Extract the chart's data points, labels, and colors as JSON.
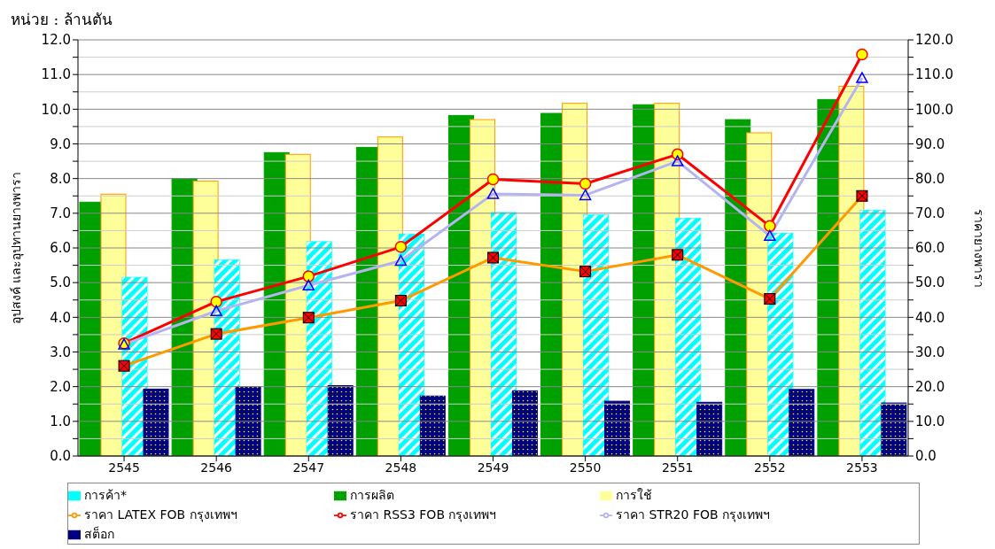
{
  "chart_data": {
    "type": "bar",
    "title": "หน่วย : ล้านตัน",
    "ylabel": "อุปสงค์ และอุปทานยางพารา",
    "y2label": "ราคายางพารา",
    "categories": [
      "2545",
      "2546",
      "2547",
      "2548",
      "2549",
      "2550",
      "2551",
      "2552",
      "2553"
    ],
    "series": [
      {
        "name": "การผลิต",
        "color": "#00a000",
        "values": [
          7.32,
          8.0,
          8.75,
          8.9,
          9.82,
          9.88,
          10.13,
          9.7,
          10.28
        ]
      },
      {
        "name": "การใช้",
        "color": "#ffff99",
        "values": [
          7.55,
          7.93,
          8.7,
          9.2,
          9.7,
          10.17,
          10.17,
          9.32,
          10.66
        ]
      },
      {
        "name": "การค้า*",
        "color": "#00ffff",
        "values": [
          5.15,
          5.65,
          6.18,
          6.4,
          7.02,
          6.95,
          6.85,
          6.42,
          7.08
        ]
      },
      {
        "name": "สต็อก",
        "color": "#000080",
        "values": [
          1.93,
          2.0,
          2.03,
          1.73,
          1.88,
          1.58,
          1.55,
          1.92,
          1.53
        ]
      },
      {
        "name": "ราคา RSS3 FOB กรุงเทพฯ",
        "type": "line",
        "axis": "y2",
        "marker": "circle",
        "color": "#ff0000",
        "values": [
          32.5,
          44.5,
          51.8,
          60.3,
          79.8,
          78.5,
          87.0,
          66.3,
          115.8
        ]
      },
      {
        "name": "ราคา STR20 FOB กรุงเทพฯ",
        "type": "line",
        "axis": "y2",
        "marker": "triangle",
        "color": "#b4b4f0",
        "values": [
          32.2,
          41.8,
          49.2,
          56.3,
          75.6,
          75.2,
          85.0,
          63.5,
          109.0
        ]
      },
      {
        "name": "ราคา LATEX FOB กรุงเทพฯ",
        "type": "line",
        "axis": "y2",
        "marker": "square",
        "color": "#ff9900",
        "values": [
          26.0,
          35.2,
          39.9,
          44.8,
          57.2,
          53.2,
          58.0,
          45.3,
          75.0
        ]
      }
    ],
    "ylim": [
      0,
      12
    ],
    "yticks": [
      {
        "value": 0,
        "label": "0.0"
      },
      {
        "value": 0.5,
        "label": null
      },
      {
        "value": 1,
        "label": "1.0"
      },
      {
        "value": 1.5,
        "label": null
      },
      {
        "value": 2,
        "label": "2.0"
      },
      {
        "value": 2.5,
        "label": null
      },
      {
        "value": 3,
        "label": "3.0"
      },
      {
        "value": 3.5,
        "label": null
      },
      {
        "value": 4,
        "label": "4.0"
      },
      {
        "value": 4.5,
        "label": null
      },
      {
        "value": 5,
        "label": "5.0"
      },
      {
        "value": 5.5,
        "label": null
      },
      {
        "value": 6,
        "label": "6.0"
      },
      {
        "value": 6.5,
        "label": null
      },
      {
        "value": 7,
        "label": "7.0"
      },
      {
        "value": 7.5,
        "label": null
      },
      {
        "value": 8,
        "label": "8.0"
      },
      {
        "value": 8.5,
        "label": null
      },
      {
        "value": 9,
        "label": "9.0"
      },
      {
        "value": 9.5,
        "label": null
      },
      {
        "value": 10,
        "label": "10.0"
      },
      {
        "value": 10.5,
        "label": null
      },
      {
        "value": 11,
        "label": "11.0"
      },
      {
        "value": 11.5,
        "label": null
      },
      {
        "value": 12,
        "label": "12.0"
      }
    ],
    "y2lim": [
      0,
      120
    ],
    "y2ticks": [
      {
        "value": 0,
        "label": "0.0"
      },
      {
        "value": 5,
        "label": null
      },
      {
        "value": 10,
        "label": "10.0"
      },
      {
        "value": 15,
        "label": null
      },
      {
        "value": 20,
        "label": "20.0"
      },
      {
        "value": 25,
        "label": null
      },
      {
        "value": 30,
        "label": "30.0"
      },
      {
        "value": 35,
        "label": null
      },
      {
        "value": 40,
        "label": "40.0"
      },
      {
        "value": 45,
        "label": null
      },
      {
        "value": 50,
        "label": "50.0"
      },
      {
        "value": 55,
        "label": null
      },
      {
        "value": 60,
        "label": "60.0"
      },
      {
        "value": 65,
        "label": null
      },
      {
        "value": 70,
        "label": "70.0"
      },
      {
        "value": 75,
        "label": null
      },
      {
        "value": 80,
        "label": "80.0"
      },
      {
        "value": 85,
        "label": null
      },
      {
        "value": 90,
        "label": "90.0"
      },
      {
        "value": 95,
        "label": null
      },
      {
        "value": 100,
        "label": "100.0"
      },
      {
        "value": 105,
        "label": null
      },
      {
        "value": 110,
        "label": "110.0"
      },
      {
        "value": 115,
        "label": null
      },
      {
        "value": 120,
        "label": "120.0"
      }
    ],
    "grid": "y",
    "legend": "bottom"
  }
}
